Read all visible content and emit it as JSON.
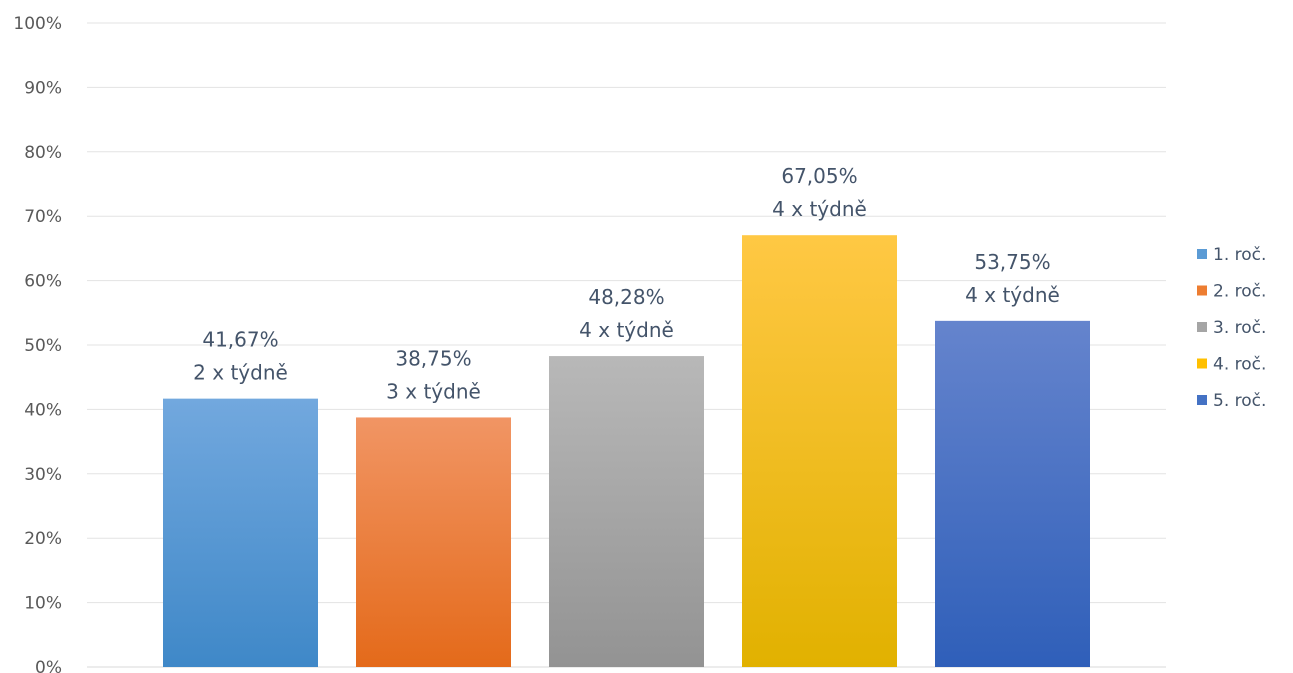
{
  "chart_data": {
    "type": "bar",
    "categories": [
      "1. roč.",
      "2. roč.",
      "3. roč.",
      "4. roč.",
      "5. roč."
    ],
    "values": [
      41.67,
      38.75,
      48.28,
      67.05,
      53.75
    ],
    "value_labels": [
      "41,67%",
      "38,75%",
      "48,28%",
      "67,05%",
      "53,75%"
    ],
    "annotations": [
      "2 x týdně",
      "3 x týdně",
      "4 x týdně",
      "4 x týdně",
      "4 x týdně"
    ],
    "colors": [
      {
        "top": "#72a8de",
        "bottom": "#3f88c8"
      },
      {
        "top": "#f19564",
        "bottom": "#e46a1a"
      },
      {
        "top": "#b8b8b8",
        "bottom": "#939393"
      },
      {
        "top": "#ffc844",
        "bottom": "#e1b100"
      },
      {
        "top": "#6584cd",
        "bottom": "#2f5fb9"
      }
    ],
    "legend": [
      {
        "label": "1. roč.",
        "color": "#5b9bd5"
      },
      {
        "label": "2. roč.",
        "color": "#ed7d31"
      },
      {
        "label": "3. roč.",
        "color": "#a5a5a5"
      },
      {
        "label": "4. roč.",
        "color": "#ffc000"
      },
      {
        "label": "5. roč.",
        "color": "#4472c4"
      }
    ],
    "y_ticks": [
      "0%",
      "10%",
      "20%",
      "30%",
      "40%",
      "50%",
      "60%",
      "70%",
      "80%",
      "90%",
      "100%"
    ],
    "ylim": [
      0,
      100
    ],
    "grid": true,
    "legend_position": "right",
    "title": "",
    "xlabel": "",
    "ylabel": ""
  }
}
